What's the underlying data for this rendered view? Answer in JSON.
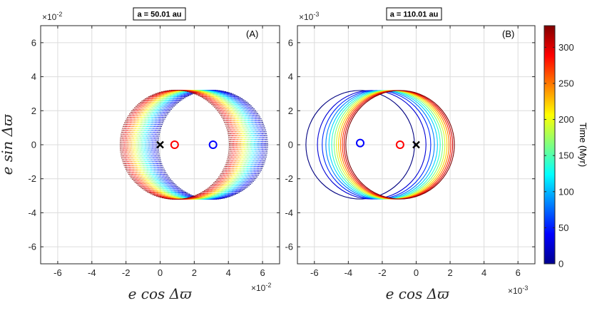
{
  "chart_data": [
    {
      "type": "scatter",
      "panel": "A",
      "title": "a = 50.01 au",
      "panel_label": "(A)",
      "xlabel": "e cos Δϖ",
      "ylabel": "e sin Δϖ",
      "x_multiplier": "×10",
      "x_multiplier_exp": "-2",
      "y_multiplier": "×10",
      "y_multiplier_exp": "-2",
      "xlim": [
        -7,
        7
      ],
      "ylim": [
        -7,
        7
      ],
      "xticks": [
        "-6",
        "-4",
        "-2",
        "0",
        "2",
        "4",
        "6"
      ],
      "yticks": [
        "-6",
        "-4",
        "-2",
        "0",
        "2",
        "4",
        "6"
      ],
      "grid": true,
      "series": [
        {
          "marker": "circle",
          "color": "#0000ff",
          "x": 3.1,
          "y": 0.0
        },
        {
          "marker": "circle",
          "color": "#ff0000",
          "x": 0.85,
          "y": 0.0
        },
        {
          "marker": "x",
          "color": "#000000",
          "x": 0.0,
          "y": 0.0
        }
      ],
      "trajectory": {
        "time_range_myr": [
          0,
          330
        ],
        "radius": 3.2,
        "center_start": 3.1,
        "center_end": 0.85,
        "dense_dotted": true
      }
    },
    {
      "type": "line",
      "panel": "B",
      "title": "a = 110.01 au",
      "panel_label": "(B)",
      "xlabel": "e cos Δϖ",
      "ylabel": "",
      "x_multiplier": "×10",
      "x_multiplier_exp": "-3",
      "y_multiplier": "×10",
      "y_multiplier_exp": "-3",
      "xlim": [
        -7,
        7
      ],
      "ylim": [
        -7,
        7
      ],
      "xticks": [
        "-6",
        "-4",
        "-2",
        "0",
        "2",
        "4",
        "6"
      ],
      "yticks": [
        "-6",
        "-4",
        "-2",
        "0",
        "2",
        "4",
        "6"
      ],
      "grid": true,
      "series": [
        {
          "marker": "circle",
          "color": "#0000ff",
          "x": -3.3,
          "y": 0.1
        },
        {
          "marker": "circle",
          "color": "#ff0000",
          "x": -0.95,
          "y": 0.0
        },
        {
          "marker": "x",
          "color": "#000000",
          "x": 0.0,
          "y": 0.0
        }
      ],
      "trajectory": {
        "time_range_myr": [
          0,
          330
        ],
        "radius": 3.2,
        "center_start": -3.3,
        "center_end": -0.95,
        "loops": 13
      }
    }
  ],
  "colorbar": {
    "label": "Time (Myr)",
    "ticks": [
      "0",
      "50",
      "100",
      "150",
      "200",
      "250",
      "300"
    ],
    "min": 0,
    "max": 330,
    "colormap": "jet"
  }
}
